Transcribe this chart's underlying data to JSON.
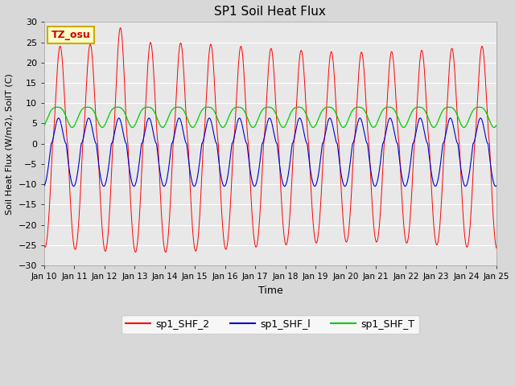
{
  "title": "SP1 Soil Heat Flux",
  "xlabel": "Time",
  "ylabel": "Soil Heat Flux (W/m2), SoilT (C)",
  "ylim": [
    -30,
    30
  ],
  "yticks": [
    -30,
    -25,
    -20,
    -15,
    -10,
    -5,
    0,
    5,
    10,
    15,
    20,
    25,
    30
  ],
  "xtick_labels": [
    "Jan 10",
    "Jan 11",
    "Jan 12",
    "Jan 13",
    "Jan 14",
    "Jan 15",
    "Jan 16",
    "Jan 17",
    "Jan 18",
    "Jan 19",
    "Jan 20",
    "Jan 21",
    "Jan 22",
    "Jan 23",
    "Jan 24",
    "Jan 25"
  ],
  "annotation_text": "TZ_osu",
  "annotation_color": "#cc0000",
  "annotation_bg": "#ffffc8",
  "annotation_border": "#ccaa00",
  "line_colors": {
    "sp1_SHF_2": "#ff0000",
    "sp1_SHF_l": "#0000cc",
    "sp1_SHF_T": "#00cc00"
  },
  "legend_labels": [
    "sp1_SHF_2",
    "sp1_SHF_l",
    "sp1_SHF_T"
  ],
  "bg_color": "#d8d8d8",
  "plot_bg": "#e8e8e8",
  "grid_color": "#ffffff",
  "n_points": 3600
}
